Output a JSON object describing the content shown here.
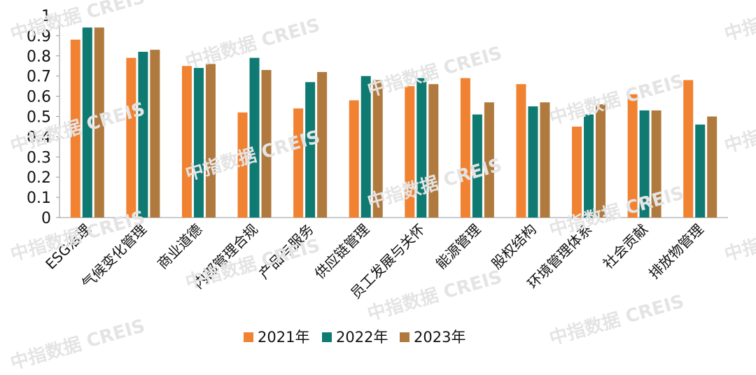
{
  "watermark": "中指数据 CREIS",
  "colors": {
    "y2021": "#f08232",
    "y2022": "#0e7a72",
    "y2023": "#b07a3e",
    "axis": "#999999",
    "text": "#111111"
  },
  "chart_data": {
    "type": "bar",
    "categories": [
      "ESG治理",
      "气候变化管理",
      "商业道德",
      "内部管理合规",
      "产品与服务",
      "供应链管理",
      "员工发展与关怀",
      "能源管理",
      "股权结构",
      "环境管理体系",
      "社会贡献",
      "排放物管理"
    ],
    "series": [
      {
        "name": "2021年",
        "values": [
          0.88,
          0.79,
          0.75,
          0.52,
          0.54,
          0.58,
          0.65,
          0.69,
          0.66,
          0.45,
          0.61,
          0.68
        ]
      },
      {
        "name": "2022年",
        "values": [
          0.94,
          0.82,
          0.74,
          0.79,
          0.67,
          0.7,
          0.69,
          0.51,
          0.55,
          0.51,
          0.53,
          0.46
        ]
      },
      {
        "name": "2023年",
        "values": [
          0.94,
          0.83,
          0.76,
          0.73,
          0.72,
          0.68,
          0.66,
          0.57,
          0.57,
          0.56,
          0.53,
          0.5
        ]
      }
    ],
    "yticks": [
      "0",
      "0.1",
      "0.2",
      "0.3",
      "0.4",
      "0.5",
      "0.6",
      "0.7",
      "0.8",
      "0.9",
      "1"
    ],
    "ylim": [
      0,
      1
    ],
    "title": "",
    "xlabel": "",
    "ylabel": "",
    "grid": false,
    "legend_position": "bottom"
  }
}
